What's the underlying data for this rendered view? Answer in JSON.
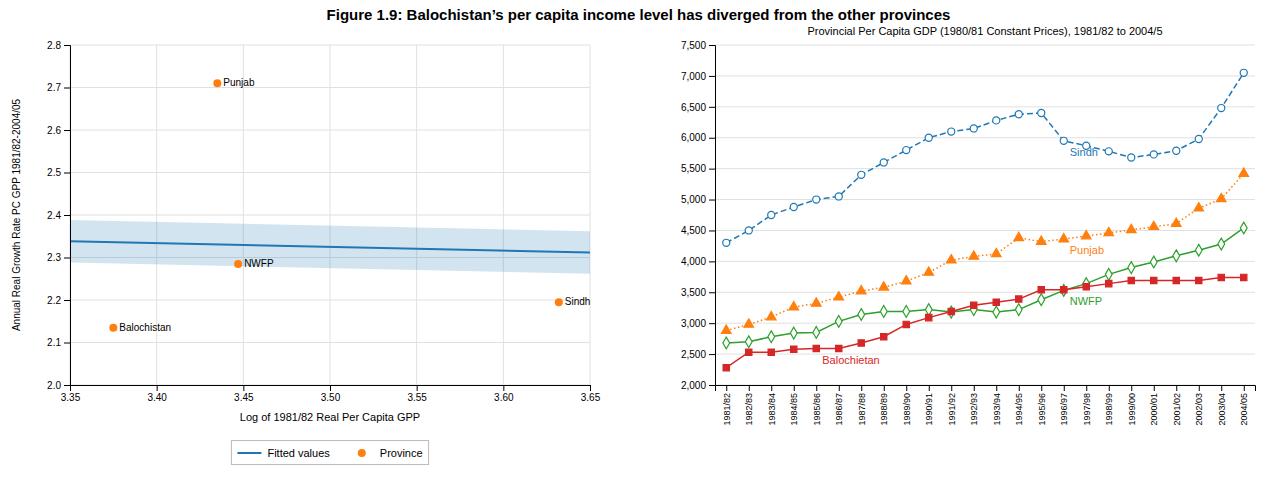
{
  "title": "Figure 1.9:  Balochistan’s per capita income level has diverged from the other provinces",
  "chart_data": [
    {
      "type": "scatter",
      "xlabel": "Log of 1981/82 Real Per Capita GPP",
      "ylabel": "Annual Real Growth Rate PC GPP 1981/82-2004/05",
      "xlim": [
        3.35,
        3.65
      ],
      "ylim": [
        2.0,
        2.8
      ],
      "xticks": [
        3.35,
        {
          "value": 3.4,
          "label": "3.40"
        },
        3.45,
        {
          "value": 3.5,
          "label": "3.50"
        },
        3.55,
        {
          "value": 3.6,
          "label": "3.60"
        },
        3.65
      ],
      "yticks": [
        {
          "value": 2.0,
          "label": "2.0"
        },
        2.1,
        2.2,
        2.3,
        2.4,
        2.5,
        2.6,
        2.7,
        2.8
      ],
      "grid": true,
      "legend": "bottom",
      "series": [
        {
          "name": "Fitted values",
          "type": "line",
          "x": [
            3.35,
            3.65
          ],
          "values": [
            2.338,
            2.312
          ],
          "lower": [
            2.288,
            2.262
          ],
          "upper": [
            2.388,
            2.362
          ]
        },
        {
          "name": "Province",
          "type": "scatter",
          "marker": "circle",
          "x": [
            3.435,
            3.375,
            3.447,
            3.632
          ],
          "values": [
            2.71,
            2.135,
            2.285,
            2.195
          ]
        }
      ],
      "annotations": [
        {
          "text": "Punjab",
          "x": 3.435,
          "y": 2.71
        },
        {
          "text": "Balochistan",
          "x": 3.375,
          "y": 2.135
        },
        {
          "text": "NWFP",
          "x": 3.447,
          "y": 2.285
        },
        {
          "text": "Sindh",
          "x": 3.632,
          "y": 2.195
        }
      ]
    },
    {
      "type": "line",
      "title": "Provincial Per Capita GDP (1980/81 Constant Prices), 1981/82 to 2004/5",
      "categories": [
        "1981/82",
        "1982/83",
        "1983/84",
        "1984/85",
        "1985/86",
        "1986/87",
        "1987/88",
        "1988/89",
        "1989/90",
        "1990/91",
        "1991/92",
        "1992/93",
        "1993/94",
        "1994/95",
        "1995/96",
        "1996/97",
        "1997/98",
        "1998/99",
        "1999/00",
        "2000/01",
        "2001/02",
        "2002/03",
        "2003/04",
        "2004/05"
      ],
      "ylim": [
        2000,
        7500
      ],
      "yticks": [
        {
          "value": 2000,
          "label": "2,000"
        },
        {
          "value": 2500,
          "label": "2,500"
        },
        {
          "value": 3000,
          "label": "3,000"
        },
        {
          "value": 3500,
          "label": "3,500"
        },
        {
          "value": 4000,
          "label": "4,000"
        },
        {
          "value": 4500,
          "label": "4,500"
        },
        {
          "value": 5000,
          "label": "5,000"
        },
        {
          "value": 5500,
          "label": "5,500"
        },
        {
          "value": 6000,
          "label": "6,000"
        },
        {
          "value": 6500,
          "label": "6,500"
        },
        {
          "value": 7000,
          "label": "7,000"
        },
        {
          "value": 7500,
          "label": "7,500"
        }
      ],
      "grid": "y",
      "series": [
        {
          "name": "Sindh",
          "marker": "circle",
          "line_style": "dashed",
          "values": [
            4300,
            4500,
            4750,
            4880,
            5000,
            5050,
            5400,
            5600,
            5800,
            6000,
            6100,
            6150,
            6280,
            6380,
            6400,
            5950,
            5870,
            5780,
            5680,
            5730,
            5790,
            5980,
            6480,
            7050
          ]
        },
        {
          "name": "Punjab",
          "marker": "triangle",
          "line_style": "dotted",
          "values": [
            2880,
            2980,
            3100,
            3260,
            3320,
            3420,
            3520,
            3580,
            3680,
            3820,
            4020,
            4080,
            4120,
            4380,
            4320,
            4360,
            4410,
            4460,
            4510,
            4560,
            4610,
            4860,
            5010,
            5420
          ]
        },
        {
          "name": "NWFP",
          "marker": "diamond",
          "line_style": "solid",
          "values": [
            2680,
            2700,
            2780,
            2840,
            2850,
            3030,
            3140,
            3190,
            3190,
            3220,
            3180,
            3220,
            3180,
            3220,
            3380,
            3530,
            3640,
            3790,
            3900,
            3990,
            4090,
            4180,
            4280,
            4540
          ]
        },
        {
          "name": "Balochietan",
          "marker": "square",
          "line_style": "solid",
          "values": [
            2280,
            2530,
            2530,
            2580,
            2590,
            2590,
            2680,
            2780,
            2980,
            3090,
            3190,
            3290,
            3340,
            3390,
            3540,
            3540,
            3590,
            3640,
            3690,
            3690,
            3690,
            3690,
            3740,
            3740
          ]
        }
      ]
    }
  ]
}
